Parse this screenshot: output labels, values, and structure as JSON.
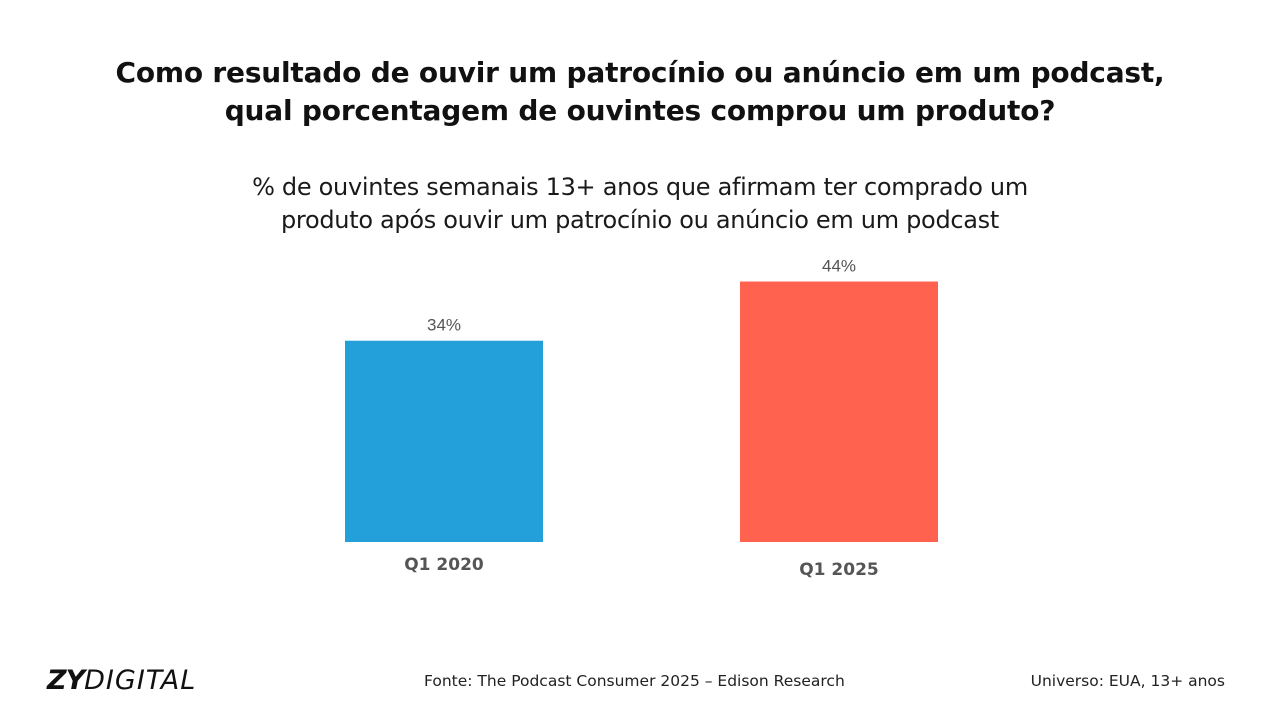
{
  "chart_data": {
    "type": "bar",
    "title": "Como resultado de ouvir um patrocínio ou anúncio em um podcast, qual porcentagem de ouvintes comprou um produto?",
    "title_lines": [
      "Como resultado de ouvir um patrocínio ou anúncio em um podcast,",
      "qual porcentagem de ouvintes comprou um produto?"
    ],
    "subtitle_lines": [
      "% de ouvintes semanais 13+ anos que afirmam ter comprado um",
      "produto após ouvir um patrocínio ou anúncio em um podcast"
    ],
    "categories": [
      "Q1 2020",
      "Q1 2025"
    ],
    "values": [
      34,
      44
    ],
    "value_labels": [
      "34%",
      "44%"
    ],
    "colors": [
      "#239FD9",
      "#FF634F"
    ],
    "xlabel": "",
    "ylabel": "",
    "ylim": [
      0,
      44
    ],
    "grid": false,
    "legend": "none"
  },
  "footer": {
    "logo_bold": "ZY",
    "logo_light": "DIGITAL",
    "source": "Fonte: The Podcast Consumer 2025 – Edison Research",
    "universe": "Universo: EUA, 13+ anos"
  }
}
